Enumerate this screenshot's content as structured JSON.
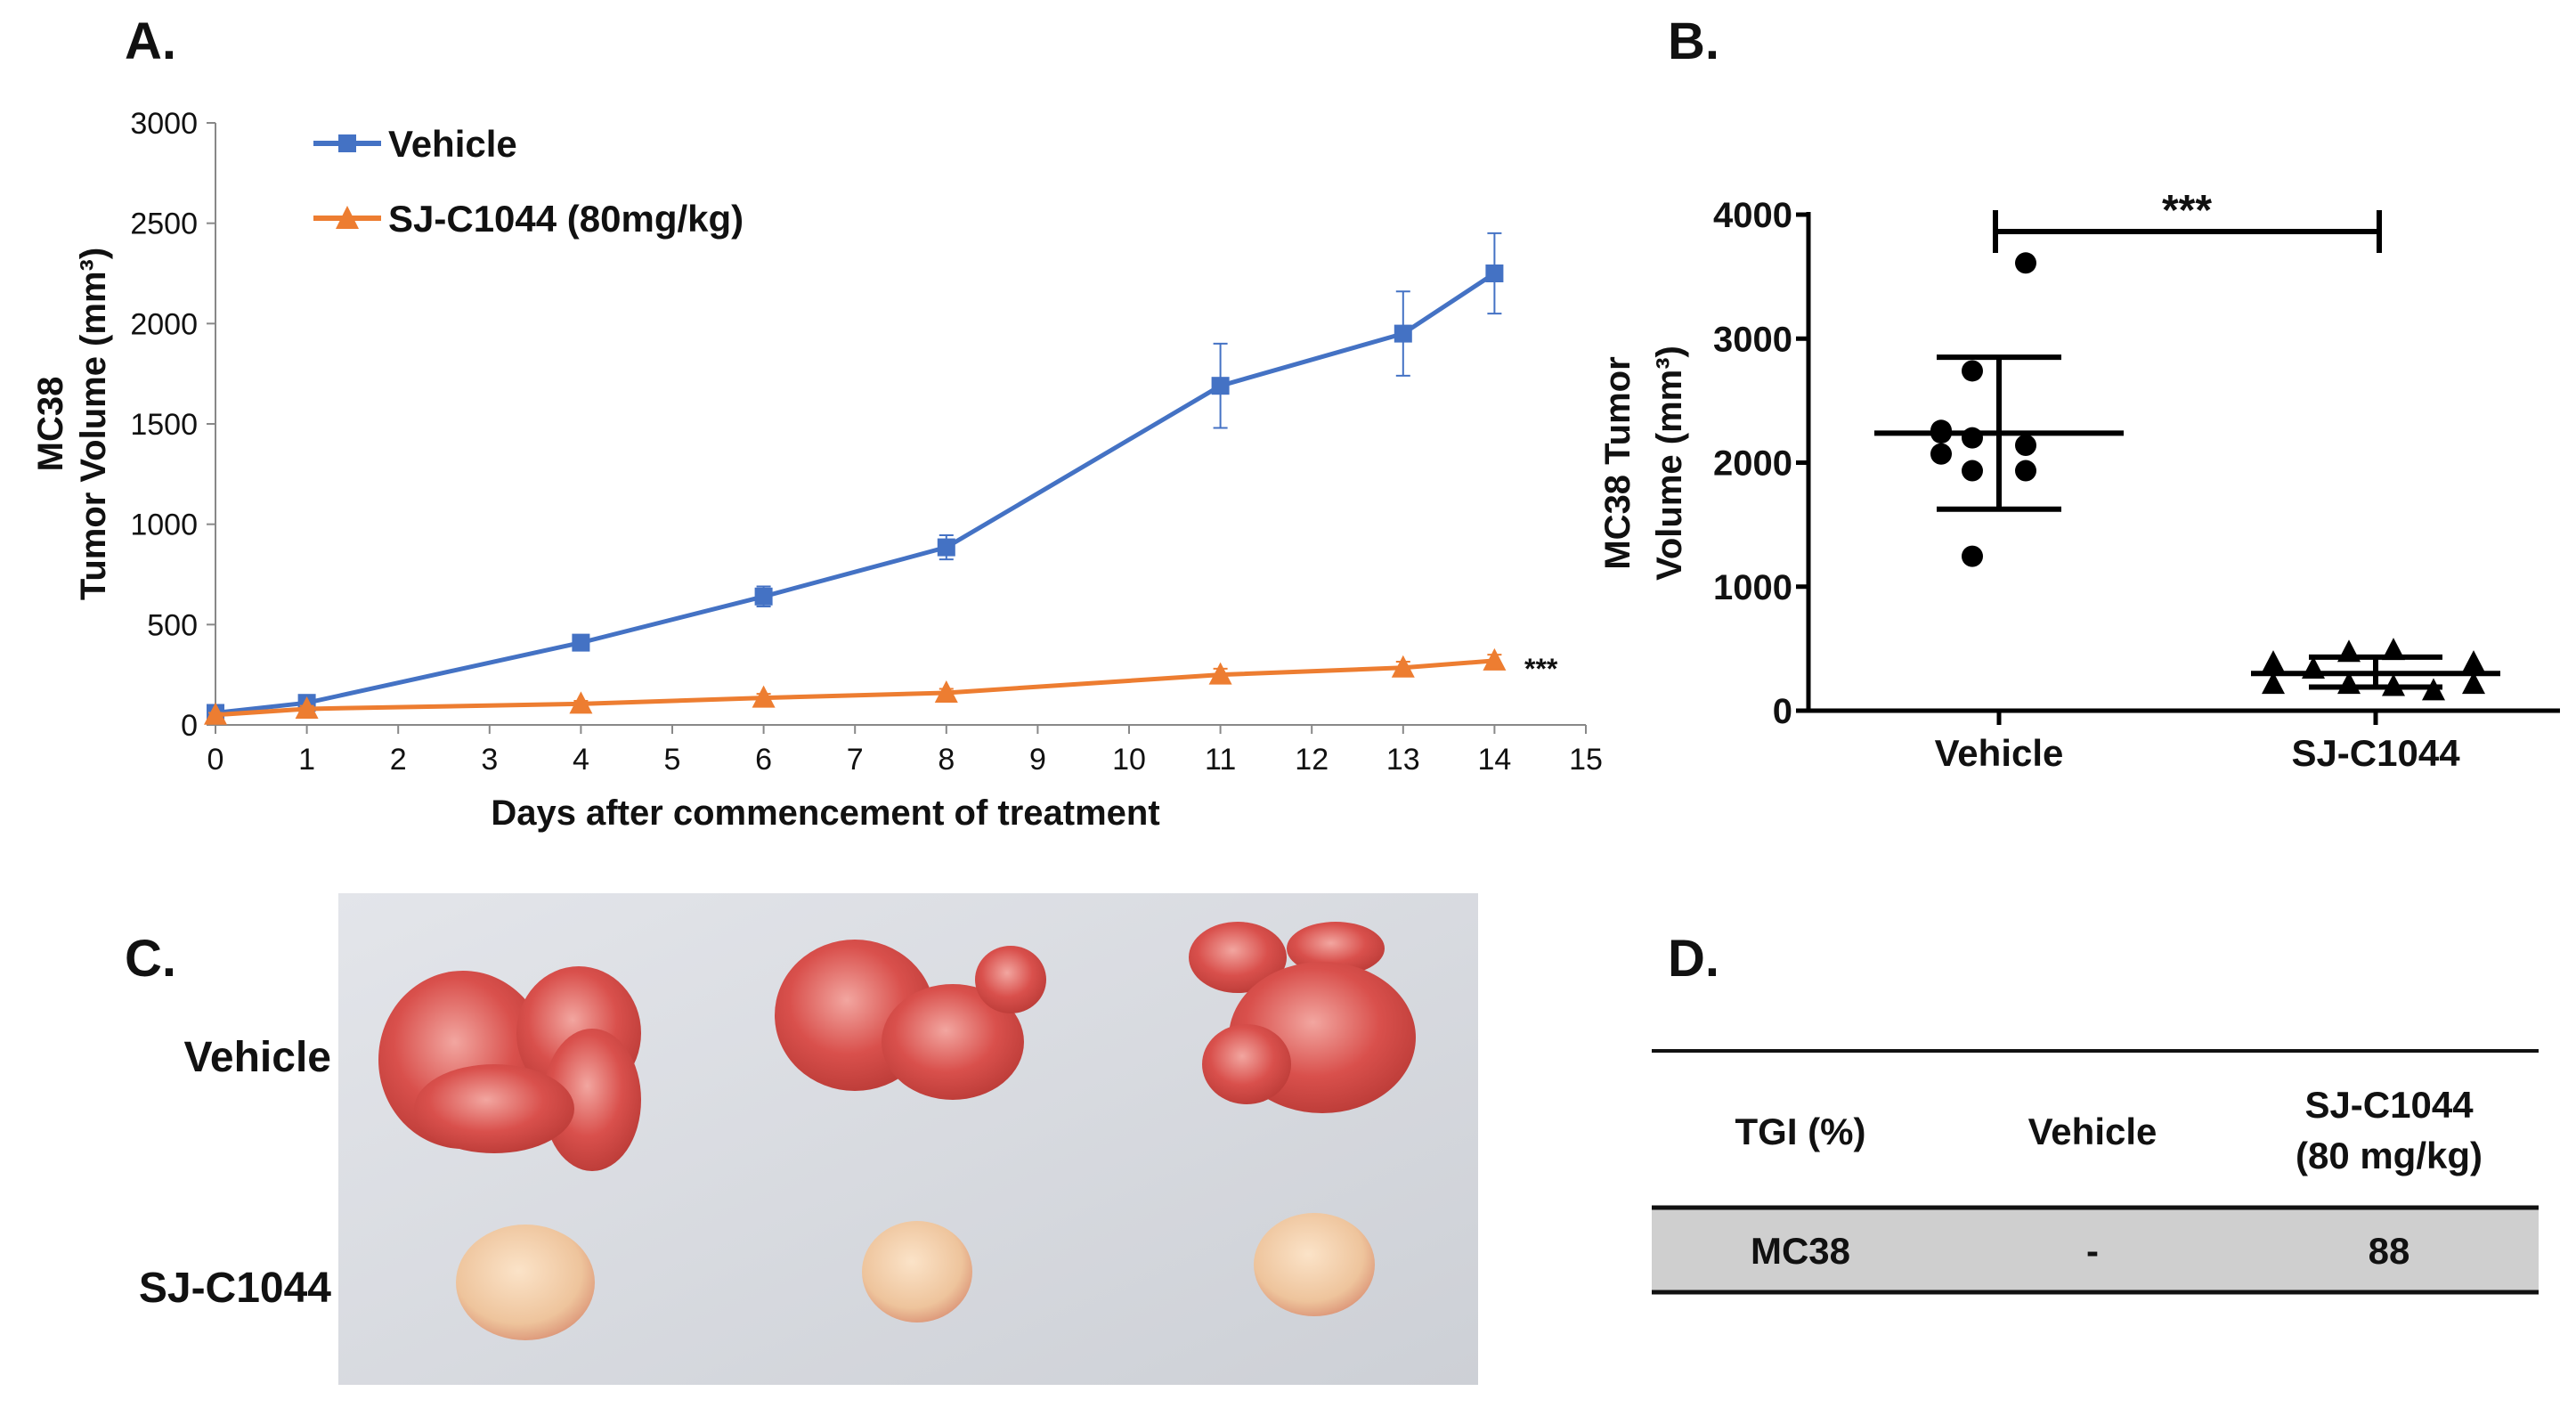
{
  "panels": {
    "a": "A.",
    "b": "B.",
    "c": "C.",
    "d": "D."
  },
  "colors": {
    "vehicle": "#4472C4",
    "treated": "#ED7D31",
    "table_fill": "#cfcfcf",
    "photo_bg": "#d9dbe0"
  },
  "chart_data": [
    {
      "type": "line",
      "title": "",
      "xlabel": "Days after commencement of treatment",
      "ylabel_lines": [
        "MC38",
        "Tumor Volume (mm³)"
      ],
      "xlim": [
        0,
        15
      ],
      "ylim": [
        0,
        3000
      ],
      "xticks": [
        "0",
        "1",
        "2",
        "3",
        "4",
        "5",
        "6",
        "7",
        "8",
        "9",
        "10",
        "11",
        "12",
        "13",
        "14",
        "15"
      ],
      "yticks": [
        "0",
        "500",
        "1000",
        "1500",
        "2000",
        "2500",
        "3000"
      ],
      "legend_position": "top-left",
      "x": [
        0,
        1,
        4,
        6,
        8,
        11,
        13,
        14
      ],
      "series": [
        {
          "name": "Vehicle",
          "marker": "square",
          "values": [
            60,
            110,
            410,
            640,
            885,
            1690,
            1950,
            2250
          ],
          "errors": [
            15,
            20,
            30,
            50,
            60,
            210,
            210,
            200
          ]
        },
        {
          "name": "SJ-C1044 (80mg/kg)",
          "marker": "triangle",
          "values": [
            50,
            80,
            105,
            135,
            160,
            250,
            285,
            320
          ],
          "errors": [
            10,
            15,
            15,
            20,
            20,
            30,
            30,
            30
          ]
        }
      ],
      "annotation": "***"
    },
    {
      "type": "scatter",
      "ylabel_lines": [
        "MC38 Tumor",
        "Volume (mm³)"
      ],
      "ylim": [
        0,
        4000
      ],
      "yticks": [
        "0",
        "1000",
        "2000",
        "3000",
        "4000"
      ],
      "categories": [
        "Vehicle",
        "SJ-C1044"
      ],
      "groups": [
        {
          "name": "Vehicle",
          "marker": "circle",
          "points": [
            3610,
            2740,
            2260,
            2200,
            2140,
            2240,
            2070,
            1935,
            1935,
            1245
          ],
          "mean": 2238,
          "sd_upper": 2850,
          "sd_lower": 1625
        },
        {
          "name": "SJ-C1044",
          "marker": "triangle",
          "points": [
            380,
            207,
            330,
            465,
            480,
            207,
            190,
            155,
            380,
            207
          ],
          "mean": 300,
          "sd_upper": 432,
          "sd_lower": 190
        }
      ],
      "significance": "***"
    }
  ],
  "photo": {
    "row_labels": [
      "Vehicle",
      "SJ-C1044"
    ]
  },
  "table": {
    "headers": [
      "TGI (%)",
      "Vehicle",
      "SJ-C1044",
      "(80 mg/kg)"
    ],
    "rows": [
      [
        "MC38",
        "-",
        "88"
      ]
    ]
  }
}
